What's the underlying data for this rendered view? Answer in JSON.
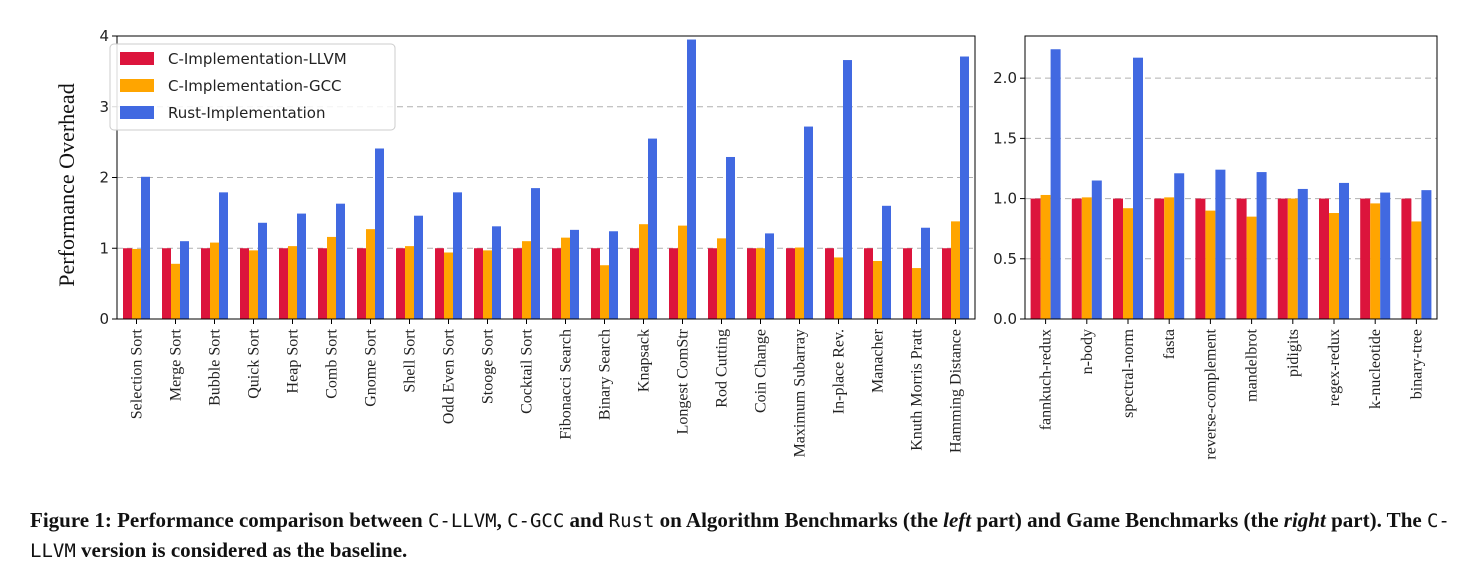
{
  "colors": {
    "llvm": "#dc143c",
    "gcc": "#ffa500",
    "rust": "#4169e1"
  },
  "chart_data": [
    {
      "type": "bar",
      "ylabel": "Performance Overhead",
      "ylim": [
        0,
        4
      ],
      "yticks": [
        "0",
        "1",
        "2",
        "3",
        "4"
      ],
      "grid": "horizontal dashed",
      "legend_position": "top-left",
      "categories": [
        "Selection Sort",
        "Merge Sort",
        "Bubble Sort",
        "Quick Sort",
        "Heap Sort",
        "Comb Sort",
        "Gnome Sort",
        "Shell Sort",
        "Odd Even Sort",
        "Stooge Sort",
        "Cocktail Sort",
        "Fibonacci Search",
        "Binary Search",
        "Knapsack",
        "Longest ComStr",
        "Rod Cutting",
        "Coin Change",
        "Maximum Subarray",
        "In-place Rev.",
        "Manacher",
        "Knuth Morris Pratt",
        "Hamming Distance"
      ],
      "series": [
        {
          "name": "C-Implementation-LLVM",
          "values": [
            1,
            1,
            1,
            1,
            1,
            1,
            1,
            1,
            1,
            1,
            1,
            1,
            1,
            1,
            1,
            1,
            1,
            1,
            1,
            1,
            1,
            1
          ]
        },
        {
          "name": "C-Implementation-GCC",
          "values": [
            0.99,
            0.78,
            1.08,
            0.97,
            1.03,
            1.16,
            1.27,
            1.03,
            0.94,
            0.97,
            1.1,
            1.15,
            0.76,
            1.34,
            1.32,
            1.14,
            1.0,
            1.01,
            0.87,
            0.82,
            0.72,
            1.38
          ]
        },
        {
          "name": "Rust-Implementation",
          "values": [
            2.01,
            1.1,
            1.79,
            1.36,
            1.49,
            1.63,
            2.41,
            1.46,
            1.79,
            1.31,
            1.85,
            1.26,
            1.24,
            2.55,
            3.95,
            2.29,
            1.21,
            2.72,
            3.66,
            1.6,
            1.29,
            3.71
          ]
        }
      ]
    },
    {
      "type": "bar",
      "ylim": [
        0,
        2.35
      ],
      "yticks": [
        "0.0",
        "0.5",
        "1.0",
        "1.5",
        "2.0"
      ],
      "grid": "horizontal dashed",
      "categories": [
        "fannkuch-redux",
        "n-body",
        "spectral-norm",
        "fasta",
        "reverse-complement",
        "mandelbrot",
        "pidigits",
        "regex-redux",
        "k-nucleotide",
        "binary-tree"
      ],
      "series": [
        {
          "name": "C-Implementation-LLVM",
          "values": [
            1,
            1,
            1,
            1,
            1,
            1,
            1,
            1,
            1,
            1
          ]
        },
        {
          "name": "C-Implementation-GCC",
          "values": [
            1.03,
            1.01,
            0.92,
            1.01,
            0.9,
            0.85,
            1.0,
            0.88,
            0.96,
            0.81
          ]
        },
        {
          "name": "Rust-Implementation",
          "values": [
            2.24,
            1.15,
            2.17,
            1.21,
            1.24,
            1.22,
            1.08,
            1.13,
            1.05,
            1.07
          ]
        }
      ]
    }
  ],
  "caption": {
    "p1": "Figure 1: Performance comparison between ",
    "c_llvm": "C-LLVM",
    "p2": ", ",
    "c_gcc": "C-GCC",
    "p3": " and ",
    "rust": "Rust",
    "p4": " on Algorithm Benchmarks (the ",
    "left": "left",
    "p5": " part) and Game Benchmarks (the ",
    "right": "right",
    "p6": " part). The ",
    "c_llvm2": "C-LLVM",
    "p7": " version is considered as the baseline."
  }
}
